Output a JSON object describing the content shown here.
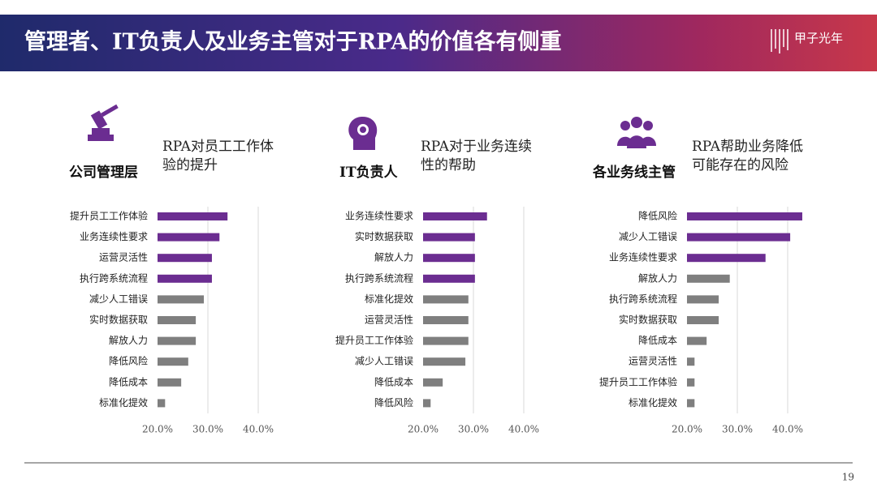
{
  "header": {
    "title": "管理者、IT负责人及业务主管对于RPA的价值各有侧重",
    "logo": "甲子光年"
  },
  "page_number": 19,
  "chart_data": [
    {
      "type": "bar",
      "orientation": "horizontal",
      "group": "公司管理层",
      "title": "RPA对员工工作体验的提升",
      "categories": [
        "提升员工工作体验",
        "业务连续性要求",
        "运营灵活性",
        "执行跨系统流程",
        "减少人工错误",
        "实时数据获取",
        "解放人力",
        "降低风险",
        "降低成本",
        "标准化提效"
      ],
      "values": [
        33.9,
        32.3,
        30.8,
        30.8,
        29.2,
        27.6,
        27.6,
        26.1,
        24.7,
        21.5
      ],
      "colors": [
        "#6b2d91",
        "#6b2d91",
        "#6b2d91",
        "#6b2d91",
        "#7f7f7f",
        "#7f7f7f",
        "#7f7f7f",
        "#7f7f7f",
        "#7f7f7f",
        "#7f7f7f"
      ],
      "xlim": [
        20,
        40
      ],
      "xticks": [
        {
          "value": 20,
          "label": "20.0%"
        },
        {
          "value": 30,
          "label": "30.0%"
        },
        {
          "value": 40,
          "label": "40.0%"
        }
      ],
      "grid": true
    },
    {
      "type": "bar",
      "orientation": "horizontal",
      "group": "IT负责人",
      "title": "RPA对于业务连续性的帮助",
      "categories": [
        "业务连续性要求",
        "实时数据获取",
        "解放人力",
        "执行跨系统流程",
        "标准化提效",
        "运营灵活性",
        "提升员工工作体验",
        "减少人工错误",
        "降低成本",
        "降低风险"
      ],
      "values": [
        32.7,
        30.3,
        30.3,
        30.3,
        29.0,
        29.0,
        29.0,
        28.4,
        23.9,
        21.5
      ],
      "colors": [
        "#6b2d91",
        "#6b2d91",
        "#6b2d91",
        "#6b2d91",
        "#7f7f7f",
        "#7f7f7f",
        "#7f7f7f",
        "#7f7f7f",
        "#7f7f7f",
        "#7f7f7f"
      ],
      "xlim": [
        20,
        40
      ],
      "xticks": [
        {
          "value": 20,
          "label": "20.0%"
        },
        {
          "value": 30,
          "label": "30.0%"
        },
        {
          "value": 40,
          "label": "40.0%"
        }
      ],
      "grid": true
    },
    {
      "type": "bar",
      "orientation": "horizontal",
      "group": "各业务线主管",
      "title": "RPA帮助业务降低可能存在的风险",
      "categories": [
        "降低风险",
        "减少人工错误",
        "业务连续性要求",
        "解放人力",
        "执行跨系统流程",
        "实时数据获取",
        "降低成本",
        "运营灵活性",
        "提升员工工作体验",
        "标准化提效"
      ],
      "values": [
        42.9,
        40.5,
        35.6,
        28.5,
        26.3,
        26.3,
        23.9,
        21.5,
        21.5,
        21.5
      ],
      "colors": [
        "#6b2d91",
        "#6b2d91",
        "#6b2d91",
        "#7f7f7f",
        "#7f7f7f",
        "#7f7f7f",
        "#7f7f7f",
        "#7f7f7f",
        "#7f7f7f",
        "#7f7f7f"
      ],
      "xlim": [
        20,
        40
      ],
      "xticks": [
        {
          "value": 20,
          "label": "20.0%"
        },
        {
          "value": 30,
          "label": "30.0%"
        },
        {
          "value": 40,
          "label": "40.0%"
        }
      ],
      "grid": true
    }
  ]
}
